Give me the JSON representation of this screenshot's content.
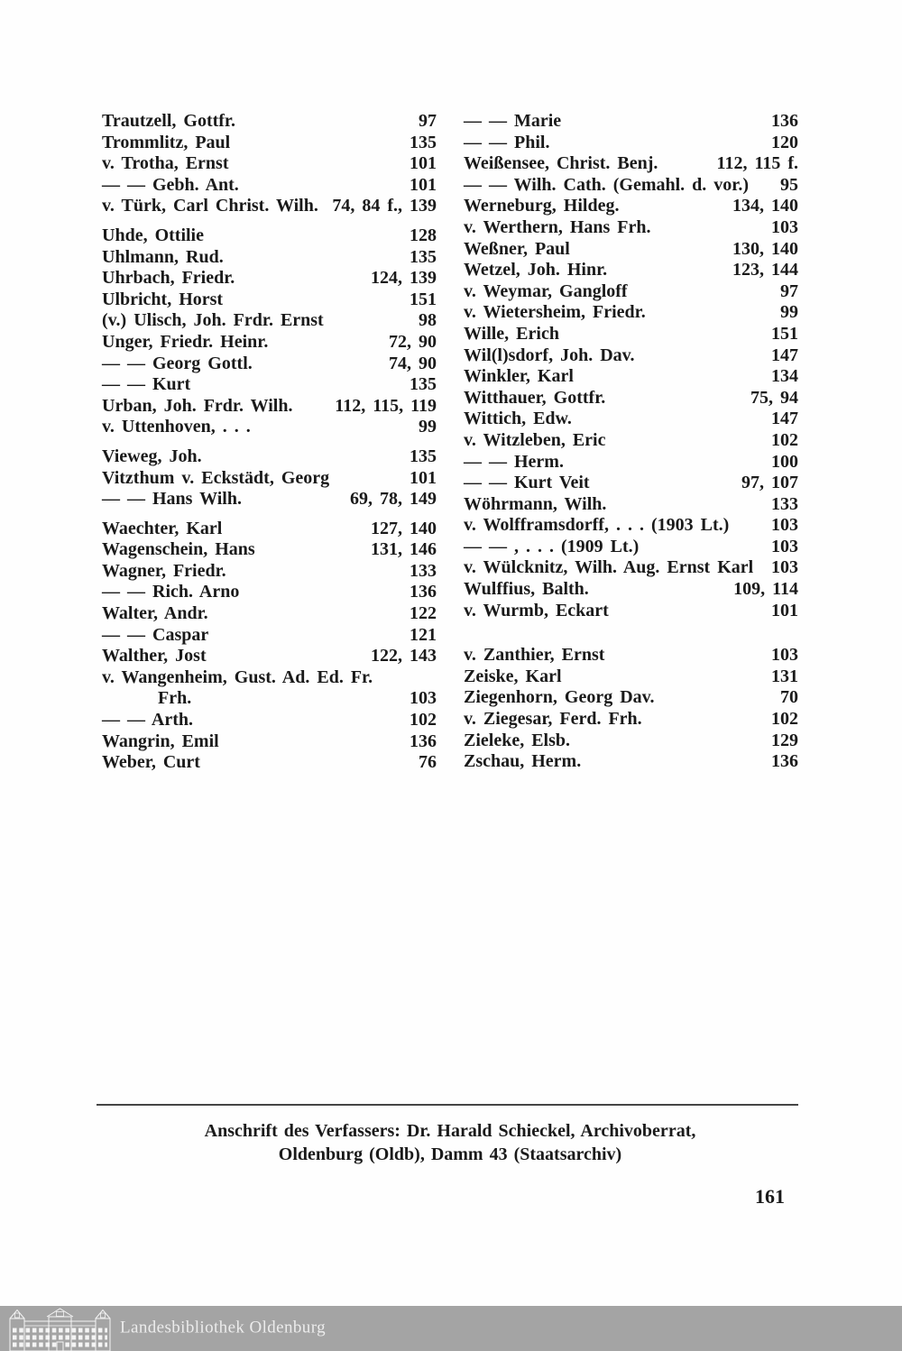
{
  "index": {
    "left_column": [
      {
        "name": "Trautzell, Gottfr.",
        "pages": "97"
      },
      {
        "name": "Trommlitz, Paul",
        "pages": "135"
      },
      {
        "name": "v. Trotha, Ernst",
        "pages": "101"
      },
      {
        "name": "— — Gebh. Ant.",
        "pages": "101"
      },
      {
        "name": "v. Türk, Carl Christ. Wilh.",
        "pages": "74, 84 f., 139"
      },
      {
        "name": "Uhde, Ottilie",
        "pages": "128",
        "gap": true
      },
      {
        "name": "Uhlmann, Rud.",
        "pages": "135"
      },
      {
        "name": "Uhrbach, Friedr.",
        "pages": "124, 139"
      },
      {
        "name": "Ulbricht, Horst",
        "pages": "151"
      },
      {
        "name": "(v.) Ulisch, Joh. Frdr. Ernst",
        "pages": "98"
      },
      {
        "name": "Unger, Friedr. Heinr.",
        "pages": "72, 90"
      },
      {
        "name": "— — Georg Gottl.",
        "pages": "74, 90"
      },
      {
        "name": "— — Kurt",
        "pages": "135"
      },
      {
        "name": "Urban, Joh. Frdr. Wilh.",
        "pages": "112, 115, 119"
      },
      {
        "name": "v. Uttenhoven, . . .",
        "pages": "99"
      },
      {
        "name": "Vieweg, Joh.",
        "pages": "135",
        "gap": true
      },
      {
        "name": "Vitzthum v. Eckstädt, Georg",
        "pages": "101"
      },
      {
        "name": "— — Hans Wilh.",
        "pages": "69, 78, 149"
      },
      {
        "name": "Waechter, Karl",
        "pages": "127, 140",
        "gap": true
      },
      {
        "name": "Wagenschein, Hans",
        "pages": "131, 146"
      },
      {
        "name": "Wagner, Friedr.",
        "pages": "133"
      },
      {
        "name": "— — Rich. Arno",
        "pages": "136"
      },
      {
        "name": "Walter, Andr.",
        "pages": "122"
      },
      {
        "name": "— — Caspar",
        "pages": "121"
      },
      {
        "name": "Walther, Jost",
        "pages": "122, 143"
      },
      {
        "name": "v. Wangenheim, Gust. Ad. Ed. Fr.",
        "pages": ""
      },
      {
        "name": "Frh.",
        "pages": "103",
        "indent": true
      },
      {
        "name": "— — Arth.",
        "pages": "102"
      },
      {
        "name": "Wangrin, Emil",
        "pages": "136"
      },
      {
        "name": "Weber, Curt",
        "pages": "76"
      }
    ],
    "right_column": [
      {
        "name": "— — Marie",
        "pages": "136"
      },
      {
        "name": "— — Phil.",
        "pages": "120"
      },
      {
        "name": "Weißensee, Christ. Benj.",
        "pages": "112, 115 f."
      },
      {
        "name": "— — Wilh. Cath. (Gemahl. d. vor.)",
        "pages": "95"
      },
      {
        "name": "Werneburg, Hildeg.",
        "pages": "134, 140"
      },
      {
        "name": "v. Werthern, Hans Frh.",
        "pages": "103"
      },
      {
        "name": "Weßner, Paul",
        "pages": "130, 140"
      },
      {
        "name": "Wetzel, Joh. Hinr.",
        "pages": "123, 144"
      },
      {
        "name": "v. Weymar, Gangloff",
        "pages": "97"
      },
      {
        "name": "v. Wietersheim, Friedr.",
        "pages": "99"
      },
      {
        "name": "Wille, Erich",
        "pages": "151"
      },
      {
        "name": "Wil(l)sdorf, Joh. Dav.",
        "pages": "147"
      },
      {
        "name": "Winkler, Karl",
        "pages": "134"
      },
      {
        "name": "Witthauer, Gottfr.",
        "pages": "75, 94"
      },
      {
        "name": "Wittich, Edw.",
        "pages": "147"
      },
      {
        "name": "v. Witzleben, Eric",
        "pages": "102"
      },
      {
        "name": "— — Herm.",
        "pages": "100"
      },
      {
        "name": "— — Kurt Veit",
        "pages": "97, 107"
      },
      {
        "name": "Wöhrmann, Wilh.",
        "pages": "133"
      },
      {
        "name": "v. Wolfframsdorff, . . . (1903 Lt.)",
        "pages": "103"
      },
      {
        "name": "— — , . . . (1909 Lt.)",
        "pages": "103"
      },
      {
        "name": "v. Wülcknitz, Wilh. Aug. Ernst Karl",
        "pages": "103"
      },
      {
        "name": "Wulffius, Balth.",
        "pages": "109, 114"
      },
      {
        "name": "v. Wurmb, Eckart",
        "pages": "101"
      },
      {
        "name": "v. Zanthier, Ernst",
        "pages": "103",
        "biggap": true
      },
      {
        "name": "Zeiske, Karl",
        "pages": "131"
      },
      {
        "name": "Ziegenhorn, Georg Dav.",
        "pages": "70"
      },
      {
        "name": "v. Ziegesar, Ferd. Frh.",
        "pages": "102"
      },
      {
        "name": "Zieleke, Elsb.",
        "pages": "129"
      },
      {
        "name": "Zschau, Herm.",
        "pages": "136"
      }
    ]
  },
  "footer": {
    "line1": "Anschrift des Verfassers: Dr. Harald Schieckel, Archivoberrat,",
    "line2": "Oldenburg (Oldb), Damm 43 (Staatsarchiv)",
    "page_number": "161"
  },
  "banner": {
    "label": "Landesbibliothek Oldenburg",
    "icon": "library-building-icon",
    "background": "#a4a4a4",
    "text_color": "#ececec"
  },
  "colors": {
    "ink": "#1a1a1a",
    "paper": "#fefefe",
    "rule": "#454545"
  }
}
